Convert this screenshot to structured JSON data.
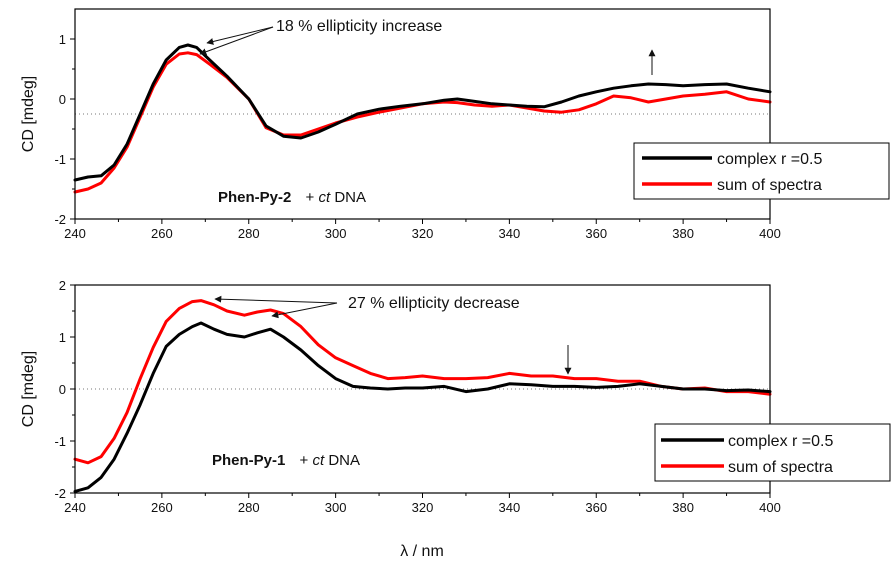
{
  "chart_data": [
    {
      "type": "line",
      "ylabel": "CD [mdeg]",
      "xlim": [
        240,
        400
      ],
      "ylim": [
        -2,
        1.5
      ],
      "xticks": [
        240,
        260,
        280,
        300,
        320,
        340,
        360,
        380,
        400
      ],
      "yticks": [
        -2,
        -1,
        0,
        1
      ],
      "baseline_y": -0.25,
      "legend": {
        "position": "right",
        "entries": [
          "complex r =0.5",
          "sum of spectra"
        ]
      },
      "series": [
        {
          "name": "complex r =0.5",
          "color": "#000000",
          "x": [
            240,
            243,
            246,
            249,
            252,
            255,
            258,
            261,
            264,
            266,
            268,
            271,
            275,
            280,
            284,
            288,
            292,
            296,
            300,
            305,
            310,
            315,
            320,
            325,
            328,
            332,
            336,
            340,
            344,
            348,
            352,
            356,
            360,
            364,
            368,
            372,
            376,
            380,
            385,
            390,
            395,
            400
          ],
          "y": [
            -1.35,
            -1.3,
            -1.28,
            -1.1,
            -0.75,
            -0.25,
            0.25,
            0.65,
            0.86,
            0.9,
            0.86,
            0.65,
            0.38,
            0.0,
            -0.45,
            -0.62,
            -0.65,
            -0.55,
            -0.42,
            -0.25,
            -0.17,
            -0.12,
            -0.08,
            -0.02,
            0.0,
            -0.04,
            -0.08,
            -0.1,
            -0.12,
            -0.13,
            -0.05,
            0.05,
            0.12,
            0.18,
            0.22,
            0.25,
            0.24,
            0.22,
            0.24,
            0.25,
            0.18,
            0.12
          ]
        },
        {
          "name": "sum of spectra",
          "color": "#ff0000",
          "x": [
            240,
            243,
            246,
            249,
            252,
            255,
            258,
            261,
            264,
            266,
            268,
            271,
            275,
            280,
            284,
            288,
            292,
            296,
            300,
            305,
            310,
            315,
            320,
            325,
            328,
            332,
            336,
            340,
            344,
            348,
            352,
            356,
            360,
            364,
            368,
            372,
            376,
            380,
            385,
            390,
            395,
            400
          ],
          "y": [
            -1.55,
            -1.5,
            -1.4,
            -1.15,
            -0.8,
            -0.3,
            0.2,
            0.58,
            0.75,
            0.77,
            0.74,
            0.58,
            0.36,
            0.0,
            -0.48,
            -0.6,
            -0.6,
            -0.5,
            -0.4,
            -0.3,
            -0.22,
            -0.15,
            -0.08,
            -0.05,
            -0.06,
            -0.1,
            -0.12,
            -0.1,
            -0.15,
            -0.2,
            -0.22,
            -0.18,
            -0.08,
            0.05,
            0.02,
            -0.05,
            0.0,
            0.05,
            0.08,
            0.12,
            0.0,
            -0.05
          ]
        }
      ],
      "annotations": [
        {
          "text": "18 % ellipticity increase"
        },
        {
          "text_bold": "Phen-Py-2",
          "text": "+ ",
          "text_italic": "ct",
          "text_after": " DNA"
        }
      ]
    },
    {
      "type": "line",
      "ylabel": "CD [mdeg]",
      "xlabel": "λ / nm",
      "xlim": [
        240,
        400
      ],
      "ylim": [
        -2,
        2
      ],
      "xticks": [
        240,
        260,
        280,
        300,
        320,
        340,
        360,
        380,
        400
      ],
      "yticks": [
        -2,
        -1,
        0,
        1,
        2
      ],
      "baseline_y": 0,
      "legend": {
        "position": "bottom-right",
        "entries": [
          "complex r =0.5",
          "sum of spectra"
        ]
      },
      "series": [
        {
          "name": "complex r =0.5",
          "color": "#000000",
          "x": [
            240,
            243,
            246,
            249,
            252,
            255,
            258,
            261,
            264,
            267,
            269,
            272,
            275,
            279,
            282,
            285,
            288,
            292,
            296,
            300,
            304,
            308,
            312,
            316,
            320,
            325,
            330,
            335,
            340,
            345,
            350,
            355,
            360,
            365,
            370,
            375,
            380,
            385,
            390,
            395,
            400
          ],
          "y": [
            -1.97,
            -1.9,
            -1.7,
            -1.35,
            -0.85,
            -0.3,
            0.3,
            0.82,
            1.05,
            1.2,
            1.27,
            1.15,
            1.05,
            1.0,
            1.08,
            1.15,
            1.0,
            0.75,
            0.45,
            0.2,
            0.05,
            0.02,
            0.0,
            0.02,
            0.02,
            0.05,
            -0.05,
            0.0,
            0.1,
            0.08,
            0.05,
            0.05,
            0.03,
            0.05,
            0.1,
            0.05,
            0.0,
            0.0,
            -0.03,
            -0.02,
            -0.05
          ]
        },
        {
          "name": "sum of spectra",
          "color": "#ff0000",
          "x": [
            240,
            243,
            246,
            249,
            252,
            255,
            258,
            261,
            264,
            267,
            269,
            272,
            275,
            279,
            282,
            285,
            288,
            292,
            296,
            300,
            304,
            308,
            312,
            316,
            320,
            325,
            330,
            335,
            340,
            345,
            350,
            355,
            360,
            365,
            370,
            375,
            380,
            385,
            390,
            395,
            400
          ],
          "y": [
            -1.35,
            -1.42,
            -1.3,
            -0.95,
            -0.45,
            0.2,
            0.8,
            1.3,
            1.55,
            1.68,
            1.7,
            1.62,
            1.5,
            1.42,
            1.48,
            1.52,
            1.45,
            1.2,
            0.85,
            0.6,
            0.45,
            0.3,
            0.2,
            0.22,
            0.25,
            0.2,
            0.2,
            0.22,
            0.3,
            0.25,
            0.25,
            0.2,
            0.2,
            0.15,
            0.15,
            0.05,
            0.0,
            0.02,
            -0.05,
            -0.05,
            -0.1
          ]
        }
      ],
      "annotations": [
        {
          "text": "27 % ellipticity decrease"
        },
        {
          "text_bold": "Phen-Py-1",
          "text": "+ ",
          "text_italic": "ct",
          "text_after": " DNA"
        }
      ]
    }
  ]
}
